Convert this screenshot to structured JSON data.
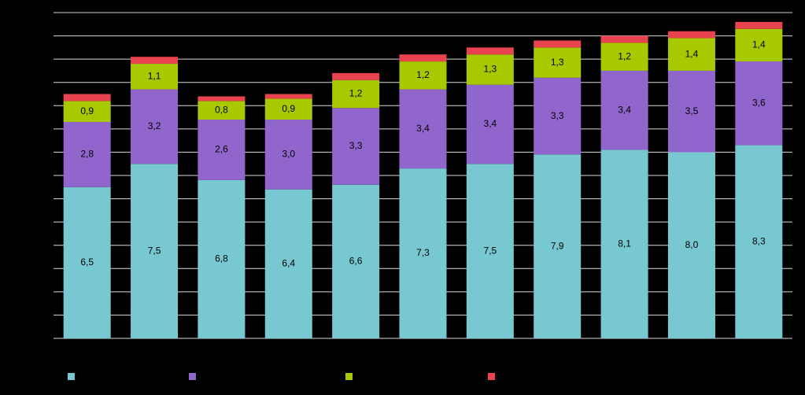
{
  "chart_data": {
    "type": "stacked_bar",
    "categories": [
      null,
      null,
      null,
      null,
      null,
      null,
      null,
      null,
      null,
      null,
      null
    ],
    "series": [
      {
        "color": "#77c8d0",
        "values": [
          6.5,
          7.5,
          6.8,
          6.4,
          6.6,
          7.3,
          7.5,
          7.9,
          8.1,
          8.0,
          8.3
        ],
        "value_labels": [
          "6,5",
          "7,5",
          "6,8",
          "6,4",
          "6,6",
          "7,3",
          "7,5",
          "7,9",
          "8,1",
          "8,0",
          "8,3"
        ]
      },
      {
        "color": "#9066cc",
        "values": [
          2.8,
          3.2,
          2.6,
          3.0,
          3.3,
          3.4,
          3.4,
          3.3,
          3.4,
          3.5,
          3.6
        ],
        "value_labels": [
          "2,8",
          "3,2",
          "2,6",
          "3,0",
          "3,3",
          "3,4",
          "3,4",
          "3,3",
          "3,4",
          "3,5",
          "3,6"
        ]
      },
      {
        "color": "#a8c800",
        "values": [
          0.9,
          1.1,
          0.8,
          0.9,
          1.2,
          1.2,
          1.3,
          1.3,
          1.2,
          1.4,
          1.4
        ],
        "value_labels": [
          "0,9",
          "1,1",
          "0,8",
          "0,9",
          "1,2",
          "1,2",
          "1,3",
          "1,3",
          "1,2",
          "1,4",
          "1,4"
        ]
      },
      {
        "color": "#e8434f",
        "values": [
          0.3,
          0.3,
          0.2,
          0.2,
          0.3,
          0.3,
          0.3,
          0.3,
          0.3,
          0.3,
          0.3
        ]
      }
    ],
    "ylim": [
      0,
      14
    ],
    "yticks": [
      0,
      1,
      2,
      3,
      4,
      5,
      6,
      7,
      8,
      9,
      10,
      11,
      12,
      13,
      14
    ],
    "grid": true
  }
}
